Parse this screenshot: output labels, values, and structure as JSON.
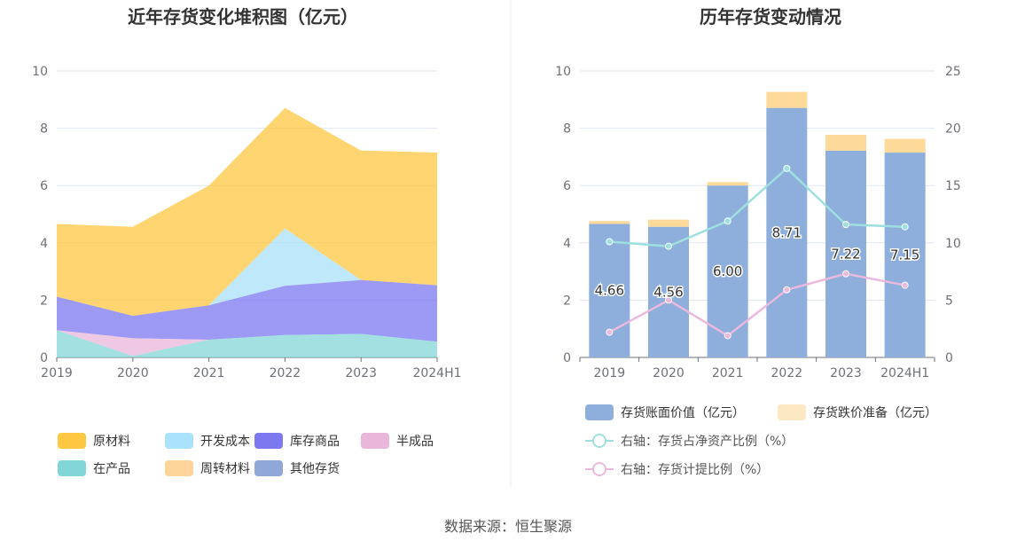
{
  "left_chart": {
    "title": "近年存货变化堆积图（亿元）",
    "legend": [
      {
        "name": "原材料",
        "color": "#fdc742"
      },
      {
        "name": "开发成本",
        "color": "#a9e2fa"
      },
      {
        "name": "库存商品",
        "color": "#7b78f0"
      },
      {
        "name": "半成品",
        "color": "#e9b7da"
      },
      {
        "name": "在产品",
        "color": "#83d6d8"
      },
      {
        "name": "周转材料",
        "color": "#fdd59a"
      },
      {
        "name": "其他存货",
        "color": "#8fa8d8"
      }
    ]
  },
  "right_chart": {
    "title": "历年存货变动情况",
    "legend": [
      {
        "name": "存货账面价值（亿元）",
        "color": "#8eaedc",
        "kind": "bar"
      },
      {
        "name": "存货跌价准备（亿元）",
        "color": "#fde8c4",
        "kind": "bar"
      },
      {
        "name": "右轴：存货占净资产比例（%）",
        "color": "#9ee0df",
        "kind": "line"
      },
      {
        "name": "右轴：存货计提比例（%）",
        "color": "#eab9dd",
        "kind": "line"
      }
    ]
  },
  "source": "数据来源：恒生聚源",
  "chart_data": [
    {
      "type": "area",
      "stacked": true,
      "title": "近年存货变化堆积图（亿元）",
      "categories": [
        "2019",
        "2020",
        "2021",
        "2022",
        "2023",
        "2024H1"
      ],
      "ylim": [
        0,
        10
      ],
      "yticks": [
        0,
        2,
        4,
        6,
        8,
        10
      ],
      "grid": true,
      "legend_position": "bottom",
      "series": [
        {
          "name": "在产品",
          "values": [
            0.95,
            0.05,
            0.62,
            0.78,
            0.82,
            0.55
          ]
        },
        {
          "name": "半成品",
          "values": [
            0.0,
            0.62,
            0.0,
            0.0,
            0.0,
            0.0
          ]
        },
        {
          "name": "库存商品",
          "values": [
            1.17,
            0.78,
            1.2,
            1.72,
            1.88,
            1.97
          ]
        },
        {
          "name": "开发成本",
          "values": [
            0.0,
            0.0,
            0.0,
            2.0,
            0.0,
            0.0
          ]
        },
        {
          "name": "原材料",
          "values": [
            2.54,
            3.11,
            4.18,
            4.21,
            4.52,
            4.63
          ]
        },
        {
          "name": "周转材料",
          "values": [
            0.0,
            0.0,
            0.0,
            0.0,
            0.0,
            0.0
          ]
        },
        {
          "name": "其他存货",
          "values": [
            0.0,
            0.0,
            0.0,
            0.0,
            0.0,
            0.0
          ]
        }
      ]
    },
    {
      "type": "bar",
      "stacked": true,
      "title": "历年存货变动情况",
      "categories": [
        "2019",
        "2020",
        "2021",
        "2022",
        "2023",
        "2024H1"
      ],
      "ylim": [
        0,
        10
      ],
      "yticks": [
        0,
        2,
        4,
        6,
        8,
        10
      ],
      "y2lim": [
        0,
        25
      ],
      "y2ticks": [
        0,
        5,
        10,
        15,
        20,
        25
      ],
      "grid": true,
      "legend_position": "bottom",
      "series": [
        {
          "name": "存货账面价值（亿元）",
          "axis": "left",
          "values": [
            4.66,
            4.56,
            6.0,
            8.71,
            7.22,
            7.15
          ],
          "labels": [
            "4.66",
            "4.56",
            "6.00",
            "8.71",
            "7.22",
            "7.15"
          ]
        },
        {
          "name": "存货跌价准备（亿元）",
          "axis": "left",
          "values": [
            0.1,
            0.25,
            0.12,
            0.56,
            0.55,
            0.48
          ]
        },
        {
          "name": "右轴：存货占净资产比例（%）",
          "axis": "right",
          "type": "line",
          "values": [
            10.1,
            9.7,
            11.9,
            16.5,
            11.6,
            11.4
          ]
        },
        {
          "name": "右轴：存货计提比例（%）",
          "axis": "right",
          "type": "line",
          "values": [
            2.2,
            5.0,
            1.9,
            5.9,
            7.3,
            6.3
          ]
        }
      ]
    }
  ]
}
